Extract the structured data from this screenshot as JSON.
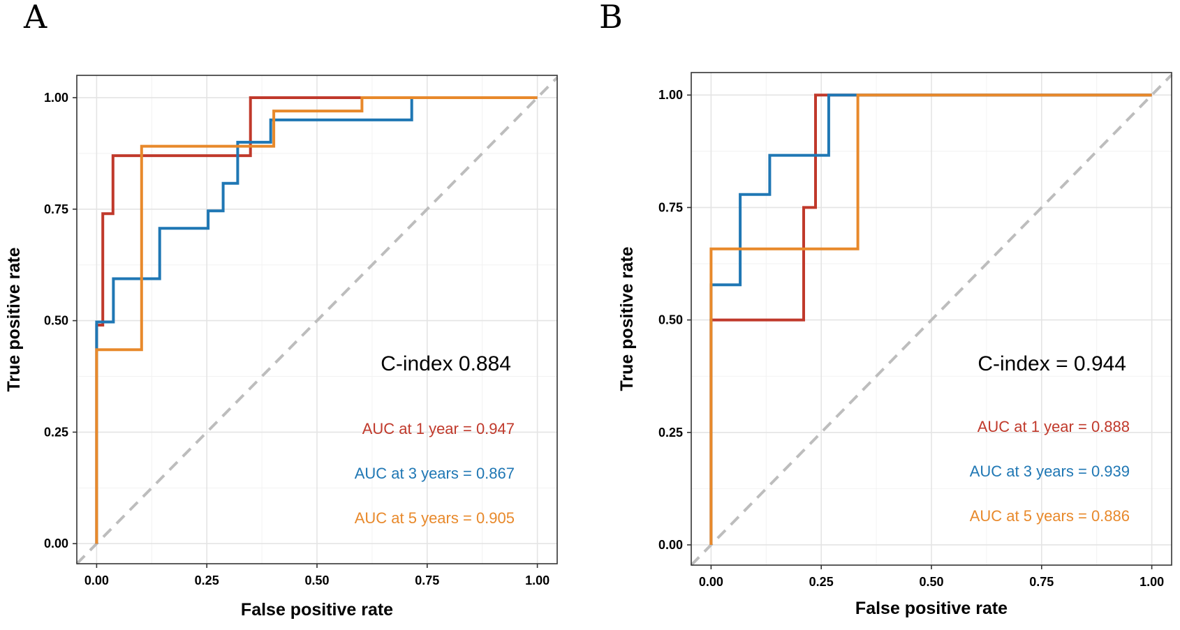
{
  "chart_data": [
    {
      "panel": "A",
      "type": "line",
      "xlabel": "False positive rate",
      "ylabel": "True positive rate",
      "xlim": [
        -0.045,
        1.045
      ],
      "ylim": [
        -0.045,
        1.05
      ],
      "xticks": [
        "0.00",
        "0.25",
        "0.50",
        "0.75",
        "1.00"
      ],
      "yticks": [
        "0.00",
        "0.25",
        "0.50",
        "0.75",
        "1.00"
      ],
      "grid": true,
      "cindex_label": "C-index 0.884",
      "diagonal": {
        "name": "reference",
        "color": "#bdbdbd"
      },
      "series": [
        {
          "name": "1 year",
          "color": "#c0392b",
          "auc_label": "AUC at 1 year = 0.947",
          "points": [
            [
              0,
              0
            ],
            [
              0,
              0.49
            ],
            [
              0.014,
              0.49
            ],
            [
              0.014,
              0.74
            ],
            [
              0.037,
              0.74
            ],
            [
              0.037,
              0.87
            ],
            [
              0.349,
              0.87
            ],
            [
              0.349,
              1
            ],
            [
              1,
              1
            ]
          ]
        },
        {
          "name": "3 years",
          "color": "#1f77b4",
          "auc_label": "AUC at 3 years = 0.867",
          "points": [
            [
              0,
              0
            ],
            [
              0,
              0.497
            ],
            [
              0.038,
              0.497
            ],
            [
              0.038,
              0.594
            ],
            [
              0.143,
              0.594
            ],
            [
              0.143,
              0.707
            ],
            [
              0.253,
              0.707
            ],
            [
              0.253,
              0.746
            ],
            [
              0.287,
              0.746
            ],
            [
              0.287,
              0.808
            ],
            [
              0.32,
              0.808
            ],
            [
              0.32,
              0.9
            ],
            [
              0.395,
              0.9
            ],
            [
              0.395,
              0.95
            ],
            [
              0.715,
              0.95
            ],
            [
              0.715,
              1
            ],
            [
              1,
              1
            ]
          ]
        },
        {
          "name": "5 years",
          "color": "#e8892b",
          "auc_label": "AUC at 5 years = 0.905",
          "points": [
            [
              0,
              0
            ],
            [
              0,
              0.435
            ],
            [
              0.102,
              0.435
            ],
            [
              0.102,
              0.891
            ],
            [
              0.402,
              0.891
            ],
            [
              0.402,
              0.97
            ],
            [
              0.602,
              0.97
            ],
            [
              0.602,
              1
            ],
            [
              1,
              1
            ]
          ]
        }
      ]
    },
    {
      "panel": "B",
      "type": "line",
      "xlabel": "False positive rate",
      "ylabel": "True positive rate",
      "xlim": [
        -0.045,
        1.045
      ],
      "ylim": [
        -0.045,
        1.05
      ],
      "xticks": [
        "0.00",
        "0.25",
        "0.50",
        "0.75",
        "1.00"
      ],
      "yticks": [
        "0.00",
        "0.25",
        "0.50",
        "0.75",
        "1.00"
      ],
      "grid": true,
      "cindex_label": "C-index = 0.944",
      "diagonal": {
        "name": "reference",
        "color": "#bdbdbd"
      },
      "series": [
        {
          "name": "1 year",
          "color": "#c0392b",
          "auc_label": "AUC at 1 year = 0.888",
          "points": [
            [
              0,
              0
            ],
            [
              0,
              0.5
            ],
            [
              0.21,
              0.5
            ],
            [
              0.21,
              0.75
            ],
            [
              0.237,
              0.75
            ],
            [
              0.237,
              1
            ],
            [
              1,
              1
            ]
          ]
        },
        {
          "name": "3 years",
          "color": "#1f77b4",
          "auc_label": "AUC at 3 years = 0.939",
          "points": [
            [
              0,
              0
            ],
            [
              0,
              0.578
            ],
            [
              0.066,
              0.578
            ],
            [
              0.066,
              0.779
            ],
            [
              0.133,
              0.779
            ],
            [
              0.133,
              0.866
            ],
            [
              0.267,
              0.866
            ],
            [
              0.267,
              1
            ],
            [
              1,
              1
            ]
          ]
        },
        {
          "name": "5 years",
          "color": "#e8892b",
          "auc_label": "AUC at 5 years = 0.886",
          "points": [
            [
              0,
              0
            ],
            [
              0,
              0.658
            ],
            [
              0.333,
              0.658
            ],
            [
              0.333,
              1
            ],
            [
              1,
              1
            ]
          ]
        }
      ]
    }
  ]
}
